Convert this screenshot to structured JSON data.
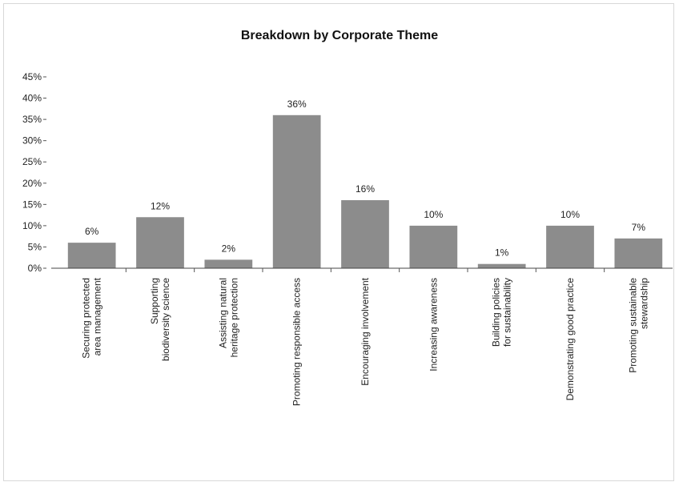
{
  "chart_data": {
    "type": "bar",
    "title": "Breakdown by Corporate Theme",
    "categories": [
      "Securing protected area management",
      "Supporting biodiversity science",
      "Assisting natural heritage protection",
      "Promoting responsible access",
      "Encouraging involvement",
      "Increasing awareness",
      "Building policies for sustainability",
      "Demonstrating good practice",
      "Promoting sustainable stewardship"
    ],
    "values": [
      6,
      12,
      2,
      36,
      16,
      10,
      1,
      10,
      7
    ],
    "value_labels": [
      "6%",
      "12%",
      "2%",
      "36%",
      "16%",
      "10%",
      "1%",
      "10%",
      "7%"
    ],
    "ytick_labels": [
      "0%",
      "5%",
      "10%",
      "15%",
      "20%",
      "25%",
      "30%",
      "35%",
      "40%",
      "45%"
    ],
    "ylim": [
      0,
      45
    ],
    "xlabel": "",
    "ylabel": "",
    "grid": false,
    "bar_color": "#8c8c8c"
  }
}
